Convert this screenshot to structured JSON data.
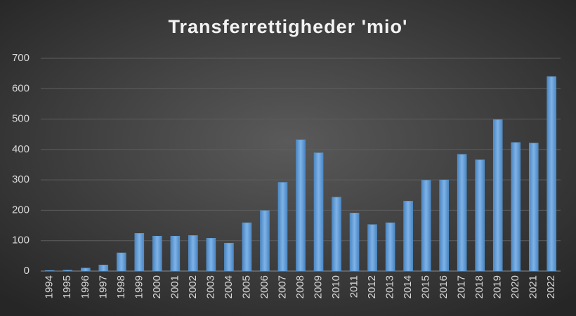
{
  "chart_data": {
    "type": "bar",
    "title": "Transferrettigheder 'mio'",
    "categories": [
      "1994",
      "1995",
      "1996",
      "1997",
      "1998",
      "1999",
      "2000",
      "2001",
      "2002",
      "2003",
      "2004",
      "2005",
      "2006",
      "2007",
      "2008",
      "2009",
      "2010",
      "2011",
      "2012",
      "2013",
      "2014",
      "2015",
      "2016",
      "2017",
      "2018",
      "2019",
      "2020",
      "2021",
      "2022"
    ],
    "values": [
      2,
      3,
      10,
      20,
      60,
      124,
      115,
      115,
      117,
      108,
      92,
      159,
      199,
      292,
      432,
      389,
      243,
      191,
      153,
      159,
      230,
      299,
      300,
      384,
      366,
      498,
      423,
      421,
      640
    ],
    "color": "#5b9bd5",
    "ylim": [
      0,
      700
    ],
    "yticks": [
      0,
      100,
      200,
      300,
      400,
      500,
      600,
      700
    ],
    "grid": true
  }
}
